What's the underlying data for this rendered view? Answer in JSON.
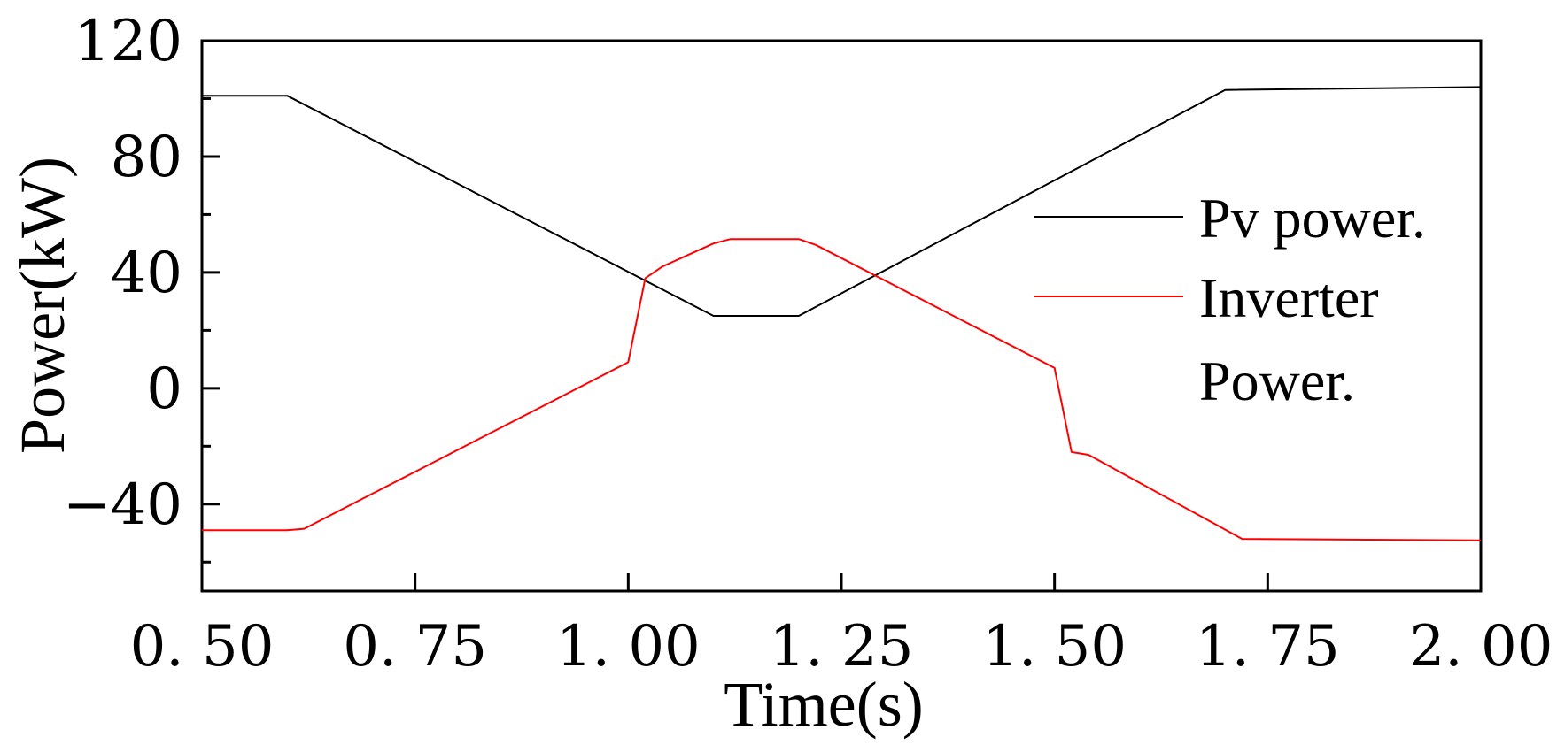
{
  "chart_data": {
    "type": "line",
    "title": "",
    "xlabel": "Time(s)",
    "ylabel": "Power(kW)",
    "xlim": [
      0.5,
      2.0
    ],
    "ylim": [
      -70,
      120
    ],
    "x_ticks": [
      0.5,
      0.75,
      1.0,
      1.25,
      1.5,
      1.75,
      2.0
    ],
    "x_tick_labels": [
      "0. 50",
      "0. 75",
      "1. 00",
      "1. 25",
      "1. 50",
      "1. 75",
      "2. 00"
    ],
    "y_ticks": [
      -40,
      0,
      40,
      80,
      120
    ],
    "y_tick_labels": [
      "−40",
      "0",
      "40",
      "80",
      "120"
    ],
    "y_minor_ticks": [
      -60,
      -20,
      20,
      60,
      100
    ],
    "grid": false,
    "legend_position": "right",
    "series": [
      {
        "name": "Pv power.",
        "color": "#000000",
        "x": [
          0.5,
          0.6,
          1.1,
          1.2,
          1.7,
          2.0
        ],
        "y": [
          101,
          101,
          25,
          25,
          103,
          104
        ]
      },
      {
        "name": "Inverter Power.",
        "legend_lines": [
          "Inverter",
          "Power."
        ],
        "color": "#ff0000",
        "x": [
          0.5,
          0.6,
          0.62,
          1.0,
          1.02,
          1.04,
          1.1,
          1.12,
          1.2,
          1.22,
          1.5,
          1.52,
          1.54,
          1.72,
          2.0
        ],
        "y": [
          -49,
          -49,
          -48.5,
          9,
          38,
          42,
          50,
          51.5,
          51.5,
          49.5,
          7,
          -22,
          -23,
          -52,
          -52.5
        ]
      }
    ]
  }
}
